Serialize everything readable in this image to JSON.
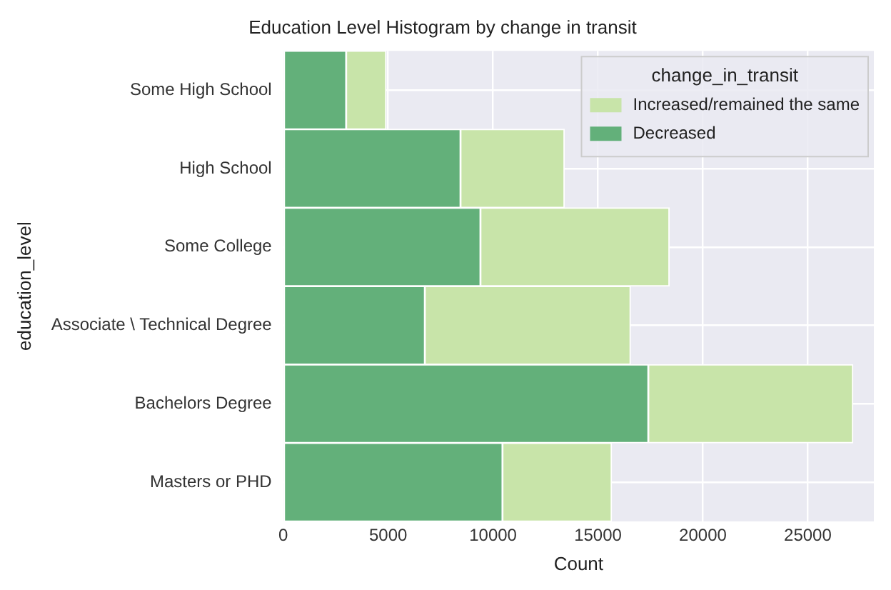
{
  "chart_data": {
    "type": "bar",
    "orientation": "horizontal",
    "stacked": true,
    "title": "Education Level Histogram by change in transit",
    "xlabel": "Count",
    "ylabel": "education_level",
    "legend_title": "change_in_transit",
    "legend": "top right",
    "grid": true,
    "categories": [
      "Some High School",
      "High School",
      "Some College",
      "Associate \\ Technical Degree",
      "Bachelors Degree",
      "Masters or PHD"
    ],
    "series": [
      {
        "name": "Decreased",
        "color": "#63b07a",
        "values": [
          3000,
          8450,
          9400,
          6750,
          17400,
          10450
        ]
      },
      {
        "name": "Increased/remained the same",
        "color": "#c8e4a9",
        "values": [
          1900,
          4950,
          9000,
          9800,
          9750,
          5200
        ]
      }
    ],
    "xlim": [
      0,
      28150
    ],
    "xticks": [
      0,
      5000,
      10000,
      15000,
      20000,
      25000
    ]
  }
}
